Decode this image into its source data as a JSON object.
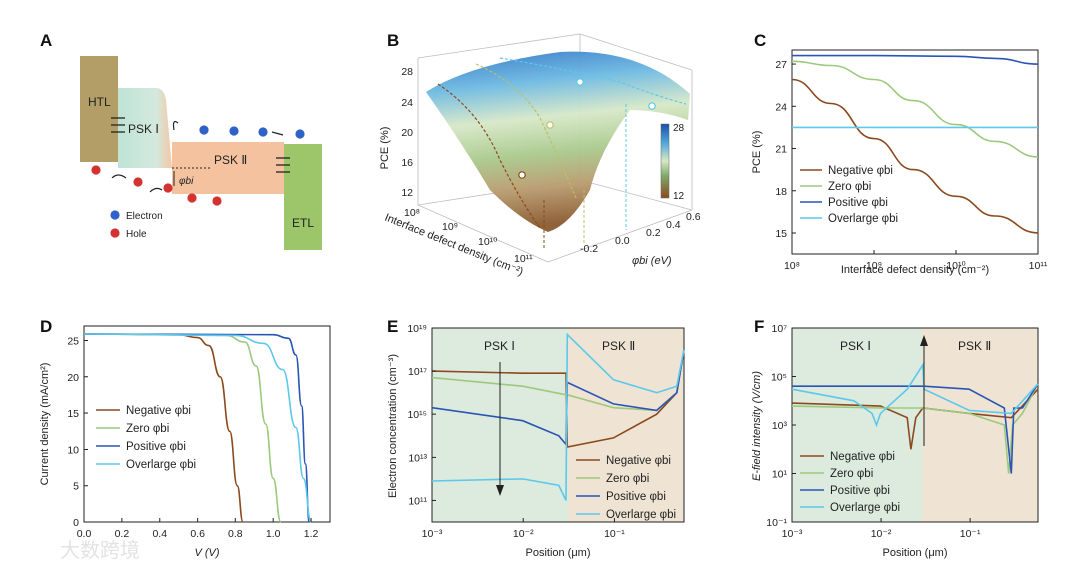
{
  "colors": {
    "negative": "#8B4A1E",
    "zero": "#9CC97E",
    "positive": "#2A55B5",
    "overlarge": "#5CC8EC",
    "psk1_bg": "#DCEBDD",
    "psk2_bg": "#EFE4D3",
    "htl": "#B29E66",
    "etl": "#9DC56A",
    "psk1": "#C5E3D7",
    "psk2": "#F4C29E",
    "electron": "#2E62C8",
    "hole": "#D23230"
  },
  "watermark": "大数跨境",
  "panels": {
    "A": {
      "label": "A",
      "htl": "HTL",
      "etl": "ETL",
      "psk1": "PSK Ⅰ",
      "psk2": "PSK Ⅱ",
      "phi_bi": "φbi",
      "legend_electron": "Electron",
      "legend_hole": "Hole"
    },
    "B": {
      "label": "B",
      "zlabel": "PCE (%)",
      "xlabel": "Interface defect density (cm⁻²)",
      "ylabel": "φbi (eV)",
      "zticks": [
        "28",
        "24",
        "20",
        "16",
        "12"
      ],
      "xticks": [
        "10⁸",
        "10⁹",
        "10¹⁰",
        "10¹¹"
      ],
      "yticks": [
        "-0.2",
        "0.0",
        "0.2",
        "0.4",
        "0.6"
      ],
      "cbar_top": "28",
      "cbar_bottom": "12"
    },
    "C": {
      "label": "C",
      "xlabel": "Interface defect density (cm⁻²)",
      "ylabel": "PCE (%)",
      "yticks": [
        "27",
        "24",
        "21",
        "18",
        "15"
      ],
      "xticks": [
        "10⁸",
        "10⁹",
        "10¹⁰",
        "10¹¹"
      ],
      "legend": [
        "Negative φbi",
        "Zero φbi",
        "Positive φbi",
        "Overlarge φbi"
      ]
    },
    "D": {
      "label": "D",
      "xlabel": "V (V)",
      "ylabel": "Current density (mA/cm²)",
      "yticks": [
        "25",
        "20",
        "15",
        "10",
        "5",
        "0"
      ],
      "xticks": [
        "0.0",
        "0.2",
        "0.4",
        "0.6",
        "0.8",
        "1.0",
        "1.2"
      ],
      "legend": [
        "Negative φbi",
        "Zero φbi",
        "Positive φbi",
        "Overlarge φbi"
      ]
    },
    "E": {
      "label": "E",
      "xlabel": "Position (μm)",
      "ylabel": "Electron concentration (cm⁻³)",
      "region1": "PSK Ⅰ",
      "region2": "PSK Ⅱ",
      "yticks": [
        "10¹⁹",
        "10¹⁷",
        "10¹⁵",
        "10¹³",
        "10¹¹"
      ],
      "xticks": [
        "10⁻³",
        "10⁻²",
        "10⁻¹"
      ],
      "legend": [
        "Negative φbi",
        "Zero φbi",
        "Positive φbi",
        "Overlarge φbi"
      ]
    },
    "F": {
      "label": "F",
      "xlabel": "Position (μm)",
      "ylabel": "E-field intensity (V/cm)",
      "region1": "PSK Ⅰ",
      "region2": "PSK Ⅱ",
      "yticks": [
        "10⁷",
        "10⁵",
        "10³",
        "10¹",
        "10⁻¹"
      ],
      "xticks": [
        "10⁻³",
        "10⁻²",
        "10⁻¹"
      ],
      "legend": [
        "Negative φbi",
        "Zero φbi",
        "Positive φbi",
        "Overlarge φbi"
      ]
    }
  },
  "chart_data": [
    {
      "panel": "C",
      "type": "line",
      "x_scale": "log",
      "xlim": [
        100000000.0,
        100000000000.0
      ],
      "ylim": [
        13.5,
        28
      ],
      "series": [
        {
          "name": "Negative φbi",
          "x": [
            100000000.0,
            300000000.0,
            1000000000.0,
            3000000000.0,
            10000000000.0,
            30000000000.0,
            100000000000.0
          ],
          "y": [
            25.9,
            24.2,
            21.7,
            19.5,
            17.6,
            16.2,
            15.0
          ]
        },
        {
          "name": "Zero φbi",
          "x": [
            100000000.0,
            300000000.0,
            1000000000.0,
            3000000000.0,
            10000000000.0,
            30000000000.0,
            100000000000.0
          ],
          "y": [
            27.2,
            26.9,
            25.9,
            24.4,
            22.7,
            21.5,
            20.4
          ]
        },
        {
          "name": "Positive φbi",
          "x": [
            100000000.0,
            1000000000.0,
            10000000000.0,
            30000000000.0,
            100000000000.0
          ],
          "y": [
            27.6,
            27.6,
            27.55,
            27.4,
            27.0
          ]
        },
        {
          "name": "Overlarge φbi",
          "x": [
            100000000.0,
            100000000000.0
          ],
          "y": [
            22.5,
            22.5
          ]
        }
      ]
    },
    {
      "panel": "D",
      "type": "line",
      "xlim": [
        0,
        1.3
      ],
      "ylim": [
        0,
        27
      ],
      "series": [
        {
          "name": "Negative φbi",
          "x": [
            0,
            0.5,
            0.6,
            0.66,
            0.72,
            0.77,
            0.81,
            0.84
          ],
          "y": [
            25.9,
            25.8,
            25.4,
            24.3,
            20.0,
            12.5,
            5.0,
            0
          ]
        },
        {
          "name": "Zero φbi",
          "x": [
            0,
            0.75,
            0.85,
            0.91,
            0.96,
            1.0,
            1.04
          ],
          "y": [
            25.9,
            25.7,
            24.8,
            21.5,
            13.5,
            6.0,
            0
          ]
        },
        {
          "name": "Positive φbi",
          "x": [
            0,
            1.0,
            1.08,
            1.12,
            1.15,
            1.17,
            1.19
          ],
          "y": [
            25.9,
            25.8,
            25.3,
            23.0,
            16.0,
            8.0,
            0
          ]
        },
        {
          "name": "Overlarge φbi",
          "x": [
            0,
            0.8,
            0.95,
            1.05,
            1.12,
            1.16,
            1.2
          ],
          "y": [
            25.9,
            25.7,
            24.6,
            21.0,
            13.0,
            6.0,
            0
          ]
        }
      ]
    },
    {
      "panel": "E",
      "type": "line",
      "x_scale": "log",
      "y_scale": "log",
      "xlim": [
        0.001,
        0.6
      ],
      "ylim": [
        10000000000.0,
        1e+19
      ],
      "series": [
        {
          "name": "Negative φbi",
          "x": [
            0.001,
            0.01,
            0.03,
            0.031,
            0.1,
            0.3,
            0.5,
            0.6
          ],
          "y": [
            1e+17,
            8e+16,
            8e+16,
            30000000000000.0,
            80000000000000.0,
            1000000000000000.0,
            1e+16,
            1e+18
          ]
        },
        {
          "name": "Zero φbi",
          "x": [
            0.001,
            0.01,
            0.03,
            0.031,
            0.1,
            0.3,
            0.5,
            0.6
          ],
          "y": [
            5e+16,
            2e+16,
            8000000000000000.0,
            8000000000000000.0,
            2000000000000000.0,
            1500000000000000.0,
            1e+16,
            1e+18
          ]
        },
        {
          "name": "Positive φbi",
          "x": [
            0.001,
            0.01,
            0.025,
            0.03,
            0.031,
            0.1,
            0.3,
            0.5,
            0.6
          ],
          "y": [
            2000000000000000.0,
            500000000000000.0,
            100000000000000.0,
            40000000000000.0,
            3e+16,
            3000000000000000.0,
            1500000000000000.0,
            1e+16,
            1e+18
          ]
        },
        {
          "name": "Overlarge φbi",
          "x": [
            0.001,
            0.01,
            0.025,
            0.03,
            0.031,
            0.1,
            0.3,
            0.5,
            0.6
          ],
          "y": [
            800000000000.0,
            1000000000000.0,
            500000000000.0,
            100000000000.0,
            5e+18,
            4e+16,
            1e+16,
            2e+16,
            1e+18
          ]
        }
      ]
    },
    {
      "panel": "F",
      "type": "line",
      "x_scale": "log",
      "y_scale": "log",
      "xlim": [
        0.001,
        0.6
      ],
      "ylim": [
        0.1,
        10000000.0
      ],
      "series": [
        {
          "name": "Negative φbi",
          "x": [
            0.001,
            0.01,
            0.02,
            0.022,
            0.025,
            0.03,
            0.1,
            0.3,
            0.6
          ],
          "y": [
            8000.0,
            6000.0,
            2000.0,
            100.0,
            2000.0,
            5000.0,
            3000.0,
            2000.0,
            30000.0
          ]
        },
        {
          "name": "Zero φbi",
          "x": [
            0.001,
            0.01,
            0.03,
            0.1,
            0.25,
            0.28,
            0.31,
            0.4,
            0.6
          ],
          "y": [
            6000.0,
            5000.0,
            5000.0,
            3000.0,
            1000.0,
            10.0,
            1000.0,
            3000.0,
            50000.0
          ]
        },
        {
          "name": "Positive φbi",
          "x": [
            0.001,
            0.01,
            0.03,
            0.031,
            0.1,
            0.25,
            0.3,
            0.32,
            0.4,
            0.6
          ],
          "y": [
            40000.0,
            40000.0,
            40000.0,
            40000.0,
            30000.0,
            5000.0,
            10.0,
            5000.0,
            5000.0,
            50000.0
          ]
        },
        {
          "name": "Overlarge φbi",
          "x": [
            0.001,
            0.005,
            0.008,
            0.009,
            0.01,
            0.02,
            0.03,
            0.031,
            0.1,
            0.3,
            0.6
          ],
          "y": [
            30000.0,
            10000.0,
            3000.0,
            1000.0,
            3000.0,
            30000.0,
            300000.0,
            30000.0,
            4000.0,
            3000.0,
            50000.0
          ]
        }
      ]
    }
  ]
}
